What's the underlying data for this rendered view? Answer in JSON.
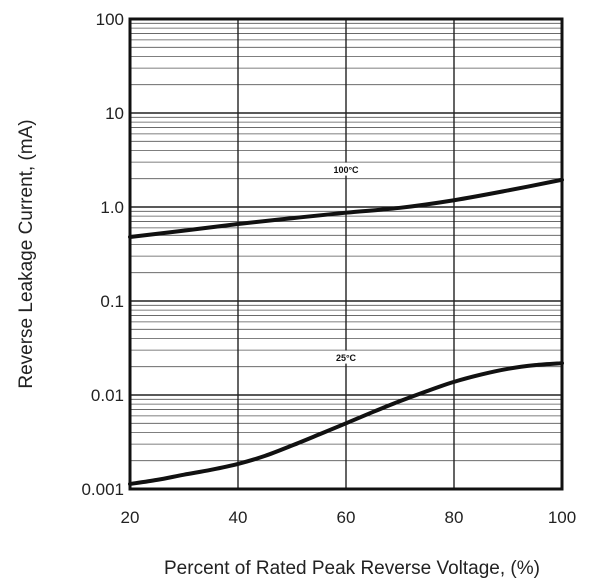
{
  "chart_data": {
    "type": "line",
    "title": "",
    "xlabel": "Percent of Rated Peak Reverse Voltage, (%)",
    "ylabel": "Reverse Leakage Current, (mA)",
    "x_scale": "linear",
    "y_scale": "log",
    "xlim": [
      20,
      100
    ],
    "ylim": [
      0.001,
      100
    ],
    "x_ticks": [
      20,
      40,
      60,
      80,
      100
    ],
    "x_tick_labels": [
      "20",
      "40",
      "60",
      "80",
      "100"
    ],
    "y_ticks": [
      0.001,
      0.01,
      0.1,
      1,
      10,
      100
    ],
    "y_tick_labels": [
      "0.001",
      "0.01",
      "0.1",
      "1.0",
      "10",
      "100"
    ],
    "grid": true,
    "series": [
      {
        "name": "100°C",
        "x": [
          20,
          30,
          40,
          50,
          60,
          70,
          80,
          90,
          100
        ],
        "y": [
          0.48,
          0.56,
          0.66,
          0.76,
          0.87,
          0.98,
          1.18,
          1.5,
          1.95
        ]
      },
      {
        "name": "25°C",
        "x": [
          20,
          25,
          30,
          35,
          40,
          45,
          50,
          55,
          60,
          65,
          70,
          75,
          80,
          85,
          90,
          95,
          100
        ],
        "y": [
          0.00113,
          0.00125,
          0.00142,
          0.0016,
          0.00185,
          0.00225,
          0.0029,
          0.0038,
          0.005,
          0.0066,
          0.0086,
          0.011,
          0.0138,
          0.0165,
          0.019,
          0.0208,
          0.0218
        ]
      }
    ],
    "annotations": [
      {
        "text": "100°C",
        "x": 60,
        "y": 2.5
      },
      {
        "text": "25°C",
        "x": 60,
        "y": 0.025
      }
    ]
  }
}
